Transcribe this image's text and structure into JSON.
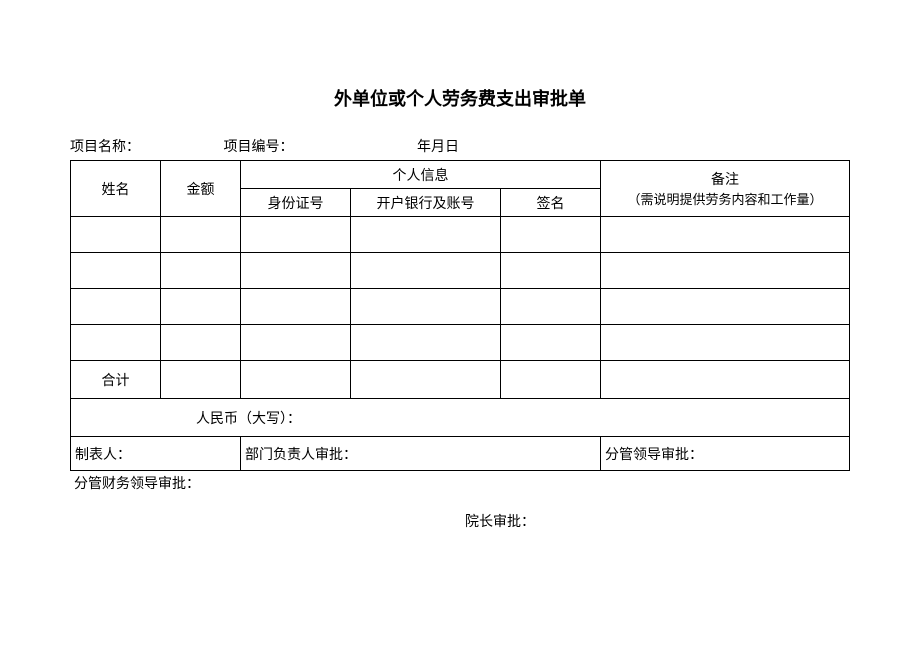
{
  "title": "外单位或个人劳务费支出审批单",
  "meta": {
    "proj_name_label": "项目名称：",
    "proj_code_label": "项目编号：",
    "date_label": "年月日"
  },
  "headers": {
    "name": "姓名",
    "amount": "金额",
    "personal_info": "个人信息",
    "id_no": "身份证号",
    "bank": "开户银行及账号",
    "signature": "签名",
    "remark": "备注",
    "remark_sub": "（需说明提供劳务内容和工作量）"
  },
  "total_label": "合计",
  "rmb_label": "人民币（大写）：",
  "approvals": {
    "preparer": "制表人：",
    "dept_head": "部门负责人审批：",
    "leader": "分管领导审批：",
    "finance": "分管财务领导审批：",
    "dean": "院长审批："
  },
  "style": {
    "background_color": "#ffffff",
    "border_color": "#000000",
    "title_fontsize": 18,
    "body_fontsize": 14,
    "sub_fontsize": 13,
    "font_family": "SimSun",
    "data_rows_count": 4,
    "col_widths": {
      "name": 90,
      "amount": 80,
      "id": 110,
      "bank": 150,
      "sign": 100
    },
    "row_heights": {
      "header_sub": 28,
      "data": 36,
      "total": 38,
      "rmb": 38,
      "approval": 34
    }
  }
}
